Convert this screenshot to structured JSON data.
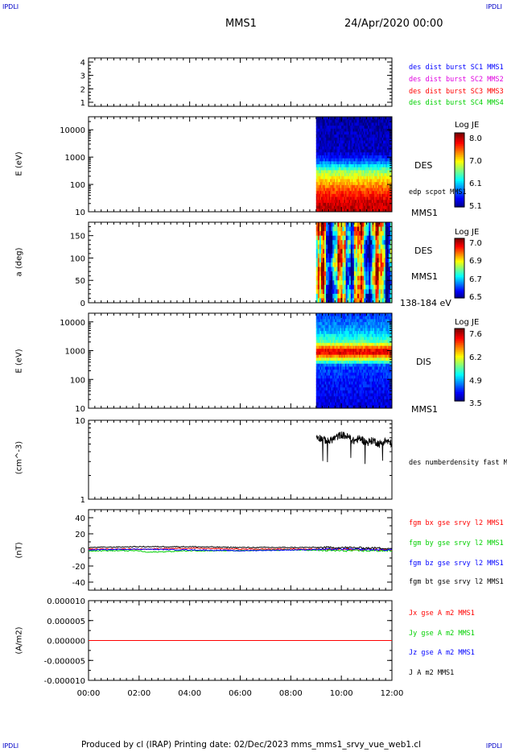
{
  "header": {
    "corner_tl": "IPDLI",
    "corner_tr": "IPDLI",
    "corner_bl": "IPDLI",
    "corner_br": "IPDLI",
    "spacecraft": "MMS1",
    "date": "24/Apr/2020 00:00"
  },
  "footer": {
    "text": "Produced by cl (IRAP)   Printing date: 02/Dec/2023   mms_mms1_srvy_vue_web1.cl"
  },
  "colors": {
    "blue": "#0000ff",
    "magenta": "#e000e0",
    "red": "#ff0000",
    "green": "#00d000",
    "black": "#000000"
  },
  "panels": {
    "p1": {
      "legend": [
        {
          "text": "des dist burst SC1 MMS1",
          "color": "#0000ff"
        },
        {
          "text": "des dist burst SC2 MMS2",
          "color": "#e000e0"
        },
        {
          "text": "des dist burst SC3 MMS3",
          "color": "#ff0000"
        },
        {
          "text": "des dist burst SC4 MMS4",
          "color": "#00d000"
        }
      ]
    },
    "p2": {
      "ylabel": "E (eV)",
      "label": "DES",
      "sublabel": "edp scpot MMS1",
      "probe": "MMS1",
      "colorbar": {
        "title": "Log JE",
        "ticks": [
          "8.0",
          "7.0",
          "6.1",
          "5.1"
        ]
      }
    },
    "p3": {
      "ylabel": "a (deg)",
      "label": "DES",
      "probe": "MMS1",
      "energy": "138-184 eV",
      "colorbar": {
        "title": "Log JE",
        "ticks": [
          "7.0",
          "6.9",
          "6.7",
          "6.5"
        ]
      }
    },
    "p4": {
      "ylabel": "E (eV)",
      "label": "DIS",
      "probe": "MMS1",
      "colorbar": {
        "title": "Log JE",
        "ticks": [
          "7.6",
          "6.2",
          "4.9",
          "3.5"
        ]
      }
    },
    "p5": {
      "ylabel": "(cm^-3)",
      "legend": [
        {
          "text": "des numberdensity fast M",
          "color": "#000000"
        }
      ]
    },
    "p6": {
      "ylabel": "(nT)",
      "legend": [
        {
          "text": "fgm bx gse srvy l2 MMS1",
          "color": "#ff0000"
        },
        {
          "text": "fgm by gse srvy l2 MMS1",
          "color": "#00d000"
        },
        {
          "text": "fgm bz gse srvy l2 MMS1",
          "color": "#0000ff"
        },
        {
          "text": "fgm bt gse srvy l2 MMS1",
          "color": "#000000"
        }
      ]
    },
    "p7": {
      "ylabel": "(A/m2)",
      "legend": [
        {
          "text": "Jx gse A m2 MMS1",
          "color": "#ff0000"
        },
        {
          "text": "Jy gse A m2 MMS1",
          "color": "#00d000"
        },
        {
          "text": "Jz gse A m2 MMS1",
          "color": "#0000ff"
        },
        {
          "text": "J A m2 MMS1",
          "color": "#000000"
        }
      ]
    }
  },
  "chart_data": [
    {
      "type": "line",
      "panel": "p1",
      "title": "",
      "yticks": [
        "4",
        "3",
        "2",
        "1"
      ],
      "ylim": [
        0.7,
        4.3
      ],
      "series": [
        {
          "name": "des dist burst SC1 MMS1",
          "values": []
        },
        {
          "name": "des dist burst SC2 MMS2",
          "values": []
        },
        {
          "name": "des dist burst SC3 MMS3",
          "values": []
        },
        {
          "name": "des dist burst SC4 MMS4",
          "values": []
        }
      ]
    },
    {
      "type": "heatmap",
      "panel": "p2",
      "xlabel": "",
      "ylabel": "E (eV)",
      "yscale": "log",
      "ylim": [
        10,
        30000
      ],
      "yticks": [
        "10000",
        "1000",
        "100",
        "10"
      ],
      "data_start_hour": 9.0,
      "data_end_hour": 12.0,
      "colorbar_range": [
        5.1,
        8.0
      ],
      "energy_profile": [
        {
          "e": 20,
          "v": 7.8
        },
        {
          "e": 40,
          "v": 7.6
        },
        {
          "e": 80,
          "v": 7.3
        },
        {
          "e": 150,
          "v": 7.0
        },
        {
          "e": 300,
          "v": 6.6
        },
        {
          "e": 450,
          "v": 6.2
        },
        {
          "e": 700,
          "v": 5.7
        },
        {
          "e": 1500,
          "v": 5.3
        },
        {
          "e": 30000,
          "v": 5.2
        }
      ]
    },
    {
      "type": "heatmap",
      "panel": "p3",
      "ylabel": "a (deg)",
      "ylim": [
        0,
        180
      ],
      "yticks": [
        "150",
        "100",
        "50",
        "0"
      ],
      "data_start_hour": 9.0,
      "data_end_hour": 12.0,
      "colorbar_range": [
        6.5,
        7.0
      ]
    },
    {
      "type": "heatmap",
      "panel": "p4",
      "ylabel": "E (eV)",
      "yscale": "log",
      "ylim": [
        10,
        20000
      ],
      "yticks": [
        "10000",
        "1000",
        "100",
        "10"
      ],
      "data_start_hour": 9.0,
      "data_end_hour": 12.0,
      "colorbar_range": [
        3.5,
        7.6
      ],
      "energy_profile": [
        {
          "e": 15,
          "v": 3.9
        },
        {
          "e": 100,
          "v": 4.1
        },
        {
          "e": 300,
          "v": 4.3
        },
        {
          "e": 450,
          "v": 5.6
        },
        {
          "e": 650,
          "v": 6.6
        },
        {
          "e": 900,
          "v": 7.4
        },
        {
          "e": 1300,
          "v": 6.6
        },
        {
          "e": 2000,
          "v": 5.4
        },
        {
          "e": 5000,
          "v": 4.7
        },
        {
          "e": 15000,
          "v": 4.3
        }
      ]
    },
    {
      "type": "line",
      "panel": "p5",
      "ylabel": "(cm^-3)",
      "yscale": "log",
      "ylim": [
        1,
        10
      ],
      "yticks": [
        "10",
        "1"
      ],
      "series": [
        {
          "name": "des numberdensity fast M",
          "color": "#000000",
          "x": [
            9.0,
            9.25,
            9.5,
            9.75,
            10.0,
            10.25,
            10.5,
            10.75,
            11.0,
            11.25,
            11.5,
            11.75,
            12.0
          ],
          "values": [
            6.3,
            5.8,
            5.4,
            6.0,
            6.6,
            6.2,
            5.5,
            5.9,
            5.2,
            5.6,
            5.0,
            5.5,
            5.1
          ]
        }
      ]
    },
    {
      "type": "line",
      "panel": "p6",
      "ylabel": "(nT)",
      "ylim": [
        -50,
        50
      ],
      "yticks": [
        "40",
        "20",
        "0",
        "-20",
        "-40"
      ],
      "series": [
        {
          "name": "fgm bx gse srvy l2 MMS1",
          "color": "#ff0000",
          "x": [
            0,
            2,
            4,
            6,
            8,
            10,
            12
          ],
          "values": [
            1,
            1,
            2,
            1,
            1,
            1,
            0
          ]
        },
        {
          "name": "fgm by gse srvy l2 MMS1",
          "color": "#00d000",
          "x": [
            0,
            2,
            2.3,
            4,
            6,
            8,
            10,
            12
          ],
          "values": [
            -1,
            -1,
            -3,
            -1,
            -1,
            0,
            -1,
            -1
          ]
        },
        {
          "name": "fgm bz gse srvy l2 MMS1",
          "color": "#0000ff",
          "x": [
            0,
            2,
            4,
            6,
            8,
            10,
            12
          ],
          "values": [
            0,
            1,
            0,
            -1,
            0,
            1,
            0
          ]
        },
        {
          "name": "fgm bt gse srvy l2 MMS1",
          "color": "#000000",
          "x": [
            0,
            2,
            4,
            6,
            8,
            10,
            12
          ],
          "values": [
            3,
            4,
            4,
            3,
            3,
            3,
            2
          ]
        }
      ]
    },
    {
      "type": "line",
      "panel": "p7",
      "ylabel": "(A/m2)",
      "ylim": [
        -1e-05,
        1e-05
      ],
      "yticks": [
        "0.000010",
        "0.000005",
        "0.000000",
        "-0.000005",
        "-0.000010"
      ],
      "series": [
        {
          "name": "Jx gse A m2 MMS1",
          "color": "#ff0000",
          "x": [
            0,
            12
          ],
          "values": [
            0,
            0
          ]
        },
        {
          "name": "Jy gse A m2 MMS1",
          "color": "#00d000",
          "x": [
            0,
            12
          ],
          "values": [
            0,
            0
          ]
        },
        {
          "name": "Jz gse A m2 MMS1",
          "color": "#0000ff",
          "x": [
            0,
            12
          ],
          "values": [
            0,
            0
          ]
        },
        {
          "name": "J A m2 MMS1",
          "color": "#000000",
          "x": [
            0,
            12
          ],
          "values": [
            0,
            0
          ]
        }
      ]
    },
    {
      "type": "axis",
      "xlim": [
        0,
        12
      ],
      "xticks": [
        "00:00",
        "02:00",
        "04:00",
        "06:00",
        "08:00",
        "10:00",
        "12:00"
      ]
    }
  ]
}
